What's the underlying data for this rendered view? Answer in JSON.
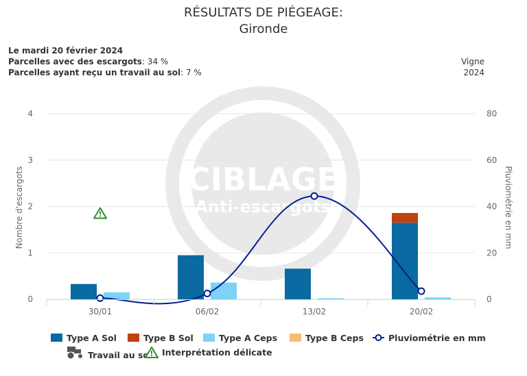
{
  "title": "RÉSULTATS DE PIÉGEAGE:",
  "subtitle": "Gironde",
  "info": {
    "date_line": "Le mardi 20 février 2024",
    "snails_label": "Parcelles avec des escargots",
    "snails_value": ": 34 %",
    "work_label": "Parcelles ayant reçu un travail au sol",
    "work_value": ": 7 %",
    "crop": "Vigne",
    "year": "2024"
  },
  "watermark": {
    "line1": "CIBLAGE",
    "line2": "Anti-escargots"
  },
  "chart_data": {
    "type": "bar",
    "categories": [
      "30/01",
      "06/02",
      "13/02",
      "20/02"
    ],
    "series": [
      {
        "name": "Type A Sol",
        "kind": "bar",
        "color": "#0a6aa1",
        "values": [
          0.33,
          0.95,
          0.66,
          1.65
        ]
      },
      {
        "name": "Type B Sol",
        "kind": "bar",
        "color": "#c0420e",
        "values": [
          0,
          0,
          0,
          0.21
        ]
      },
      {
        "name": "Type A Ceps",
        "kind": "bar",
        "color": "#7dd3f7",
        "values": [
          0.15,
          0.36,
          0.02,
          0.04
        ]
      },
      {
        "name": "Type B Ceps",
        "kind": "bar",
        "color": "#f7bc7a",
        "values": [
          0,
          0,
          0,
          0
        ]
      },
      {
        "name": "Pluviométrie en mm",
        "kind": "line",
        "axis": "right",
        "color": "#001f8f",
        "values": [
          0.5,
          2.5,
          44.5,
          3.5
        ]
      }
    ],
    "ylabel": "Nombre d'escargots",
    "y2label": "Pluviométrie en mm",
    "ylim": [
      0,
      4
    ],
    "y2lim": [
      0,
      80
    ],
    "yticks": [
      "0",
      "1",
      "2",
      "3",
      "4"
    ],
    "y2ticks": [
      "0",
      "20",
      "40",
      "60",
      "80"
    ],
    "annotations": [
      {
        "category": "30/01",
        "y": 1.85,
        "symbol": "!",
        "label": "Interprétation délicate"
      }
    ],
    "legend_position": "bottom",
    "grid": true
  },
  "legend": {
    "items": [
      {
        "label": "Type A Sol",
        "color": "#0a6aa1"
      },
      {
        "label": "Type B Sol",
        "color": "#c0420e"
      },
      {
        "label": "Type A Ceps",
        "color": "#7dd3f7"
      },
      {
        "label": "Type B Ceps",
        "color": "#f7bc7a"
      },
      {
        "label": "Pluviométrie en mm",
        "color": "#001f8f"
      }
    ],
    "work_label": "Travail au sol",
    "warning_label": "Interprétation délicate"
  }
}
